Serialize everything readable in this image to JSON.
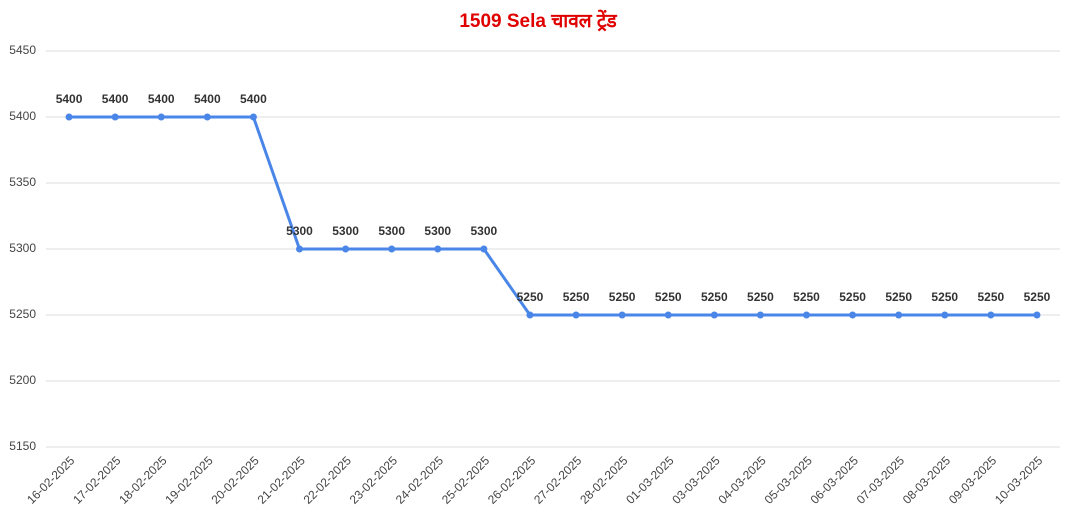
{
  "chart_data": {
    "type": "line",
    "title": "1509 Sela चावल ट्रेंड",
    "categories": [
      "16-02-2025",
      "17-02-2025",
      "18-02-2025",
      "19-02-2025",
      "20-02-2025",
      "21-02-2025",
      "22-02-2025",
      "23-02-2025",
      "24-02-2025",
      "25-02-2025",
      "26-02-2025",
      "27-02-2025",
      "28-02-2025",
      "01-03-2025",
      "03-03-2025",
      "04-03-2025",
      "05-03-2025",
      "06-03-2025",
      "07-03-2025",
      "08-03-2025",
      "09-03-2025",
      "10-03-2025"
    ],
    "values": [
      5400,
      5400,
      5400,
      5400,
      5400,
      5300,
      5300,
      5300,
      5300,
      5300,
      5250,
      5250,
      5250,
      5250,
      5250,
      5250,
      5250,
      5250,
      5250,
      5250,
      5250,
      5250
    ],
    "color": "#4a86e8",
    "ylim": [
      5150,
      5450
    ],
    "yticks": [
      5150,
      5200,
      5250,
      5300,
      5350,
      5400,
      5450
    ],
    "grid": true
  }
}
